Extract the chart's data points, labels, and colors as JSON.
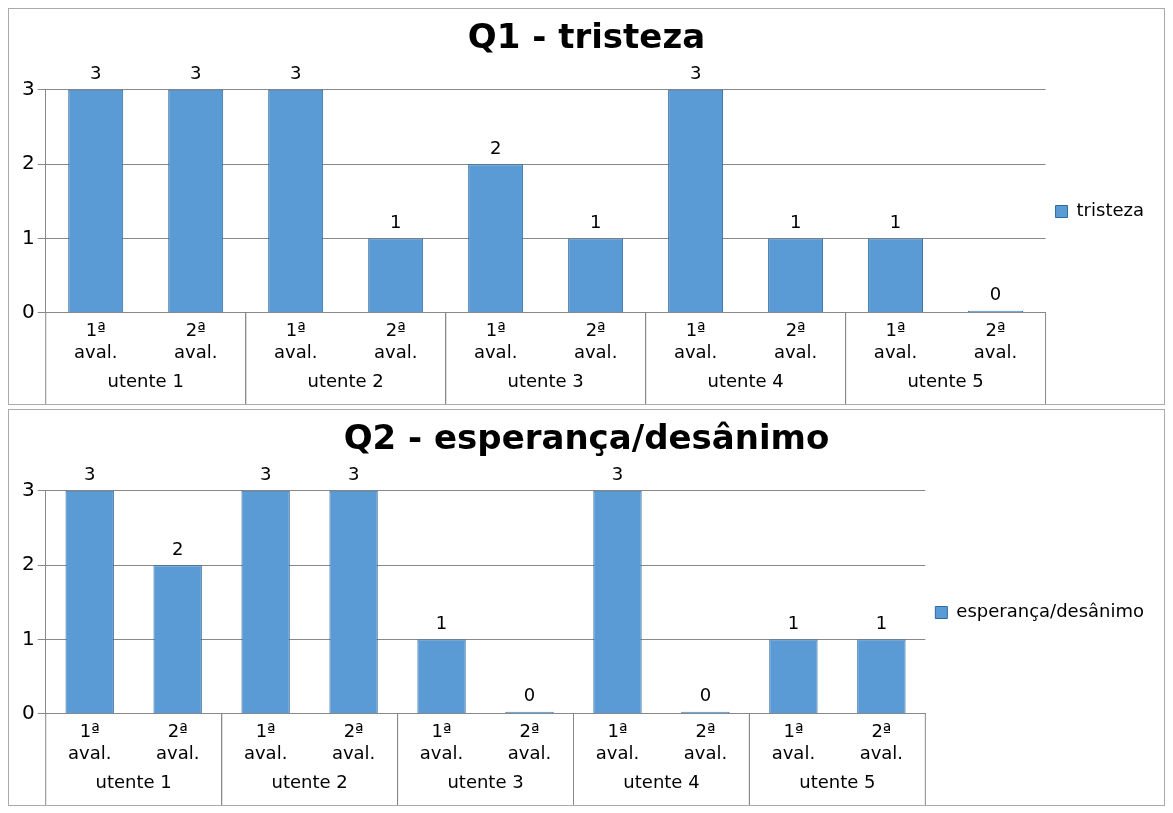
{
  "chart_data": [
    {
      "type": "bar",
      "title": "Q1 - tristeza",
      "categories": [
        "1ª aval.",
        "2ª aval.",
        "1ª aval.",
        "2ª aval.",
        "1ª aval.",
        "2ª aval.",
        "1ª aval.",
        "2ª aval.",
        "1ª aval.",
        "2ª aval."
      ],
      "series": [
        {
          "name": "tristeza",
          "color": "#5b9bd5",
          "values": [
            3,
            3,
            3,
            1,
            2,
            1,
            3,
            1,
            1,
            0
          ]
        }
      ],
      "annotations": [
        "utente 1",
        "utente 2",
        "utente 3",
        "utente 4",
        "utente 5"
      ],
      "ylim": [
        0,
        3
      ],
      "yticks": [
        0,
        1,
        2,
        3
      ],
      "grid": "y",
      "legend": "right",
      "data_labels": true
    },
    {
      "type": "bar",
      "title": "Q2 - esperança/desânimo",
      "categories": [
        "1ª aval.",
        "2ª aval.",
        "1ª aval.",
        "2ª aval.",
        "1ª aval.",
        "2ª aval.",
        "1ª aval.",
        "2ª aval.",
        "1ª aval.",
        "2ª aval."
      ],
      "series": [
        {
          "name": "esperança/desânimo",
          "color": "#5b9bd5",
          "values": [
            3,
            2,
            3,
            3,
            1,
            0,
            3,
            0,
            1,
            1
          ]
        }
      ],
      "annotations": [
        "utente 1",
        "utente 2",
        "utente 3",
        "utente 4",
        "utente 5"
      ],
      "ylim": [
        0,
        3
      ],
      "yticks": [
        0,
        1,
        2,
        3
      ],
      "grid": "y",
      "legend": "right",
      "data_labels": true
    }
  ]
}
